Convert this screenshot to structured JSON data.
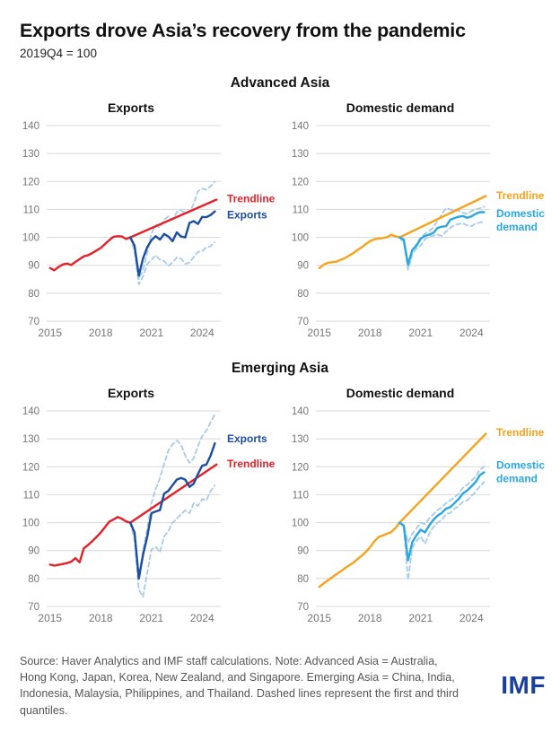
{
  "header": {
    "title": "Exports drove Asia’s recovery from the pandemic",
    "subtitle": "2019Q4 = 100"
  },
  "sections": [
    {
      "title": "Advanced Asia"
    },
    {
      "title": "Emerging Asia"
    }
  ],
  "footer": {
    "source_note": "Source: Haver Analytics and IMF staff calculations. Note: Advanced Asia = Australia, Hong Kong, Japan, Korea, New Zealand, and Singapore. Emerging Asia = China, India, Indonesia, Malaysia, Philippines, and Thailand. Dashed lines represent the first and third quantiles.",
    "logo": "IMF"
  },
  "colors": {
    "red": "#e22128",
    "dark_blue": "#1c4d9e",
    "med_blue": "#2aa7e0",
    "pale_blue": "#a5cbe9",
    "orange": "#f6a31c",
    "grid": "#d8d8d8",
    "tick": "#757575",
    "logo_blue": "#1a3f9c"
  },
  "chart_data": [
    {
      "type": "line",
      "section": "Advanced Asia",
      "title": "Exports",
      "ylim": [
        70,
        140
      ],
      "yticks": [
        70,
        80,
        90,
        100,
        110,
        120,
        130,
        140
      ],
      "xlim": [
        2014.8,
        2025.1
      ],
      "xticks": [
        2015,
        2018,
        2021,
        2024
      ],
      "grid": true,
      "legend_position": "right-of-line-ends",
      "series": [
        {
          "name": "third-quantile",
          "color_key": "pale_blue",
          "dash": true,
          "width": 1.8,
          "x0": 2019.75,
          "dx": 0.25,
          "values": [
            100,
            96.0,
            85.0,
            88.5,
            94.5,
            101.5,
            104.3,
            103.5,
            106.3,
            107.5,
            106.3,
            109.0,
            109.8,
            108.5,
            109.0,
            112.0,
            116.5,
            117.5,
            117.0,
            118.3,
            120.0
          ]
        },
        {
          "name": "first-quantile",
          "color_key": "pale_blue",
          "dash": true,
          "width": 1.8,
          "x0": 2019.75,
          "dx": 0.25,
          "values": [
            100,
            95.0,
            83.2,
            86.0,
            90.5,
            92.0,
            93.6,
            92.0,
            91.5,
            89.8,
            91.0,
            92.8,
            92.4,
            90.5,
            91.0,
            93.0,
            94.8,
            95.0,
            96.4,
            96.8,
            98.3
          ]
        },
        {
          "name": "actual-pre-pandemic",
          "color_key": "red",
          "dash": false,
          "width": 2.4,
          "x0": 2015.0,
          "dx": 0.25,
          "values": [
            89.0,
            88.2,
            89.4,
            90.3,
            90.6,
            90.1,
            91.2,
            92.2,
            93.2,
            93.6,
            94.4,
            95.3,
            96.2,
            97.6,
            99.0,
            100.2,
            100.4,
            100.3,
            99.4,
            100.0
          ]
        },
        {
          "name": "trendline",
          "color_key": "red",
          "dash": false,
          "width": 2.4,
          "points": [
            [
              2019.75,
              100
            ],
            [
              2024.85,
              113.5
            ]
          ],
          "label": {
            "lines": [
              "Trendline"
            ],
            "value": 113.8
          }
        },
        {
          "name": "exports",
          "color_key": "dark_blue",
          "dash": false,
          "width": 2.4,
          "x0": 2019.75,
          "dx": 0.25,
          "values": [
            100,
            97.0,
            86.3,
            92.5,
            96.5,
            99.0,
            100.4,
            99.2,
            101.2,
            100.3,
            98.6,
            101.8,
            100.3,
            100.0,
            105.2,
            105.8,
            104.8,
            107.3,
            107.2,
            108.0,
            109.3
          ],
          "label": {
            "lines": [
              "Exports"
            ],
            "value": 108.0
          }
        }
      ]
    },
    {
      "type": "line",
      "section": "Advanced Asia",
      "title": "Domestic demand",
      "ylim": [
        70,
        140
      ],
      "yticks": [
        70,
        80,
        90,
        100,
        110,
        120,
        130,
        140
      ],
      "xlim": [
        2014.8,
        2025.1
      ],
      "xticks": [
        2015,
        2018,
        2021,
        2024
      ],
      "grid": true,
      "legend_position": "right-of-line-ends",
      "series": [
        {
          "name": "third-quantile",
          "color_key": "pale_blue",
          "dash": true,
          "width": 1.8,
          "x0": 2019.75,
          "dx": 0.25,
          "values": [
            100,
            98.6,
            89.2,
            95.2,
            97.6,
            100.0,
            101.3,
            102.2,
            103.6,
            106.0,
            108.2,
            110.4,
            110.0,
            109.4,
            109.6,
            108.8,
            108.4,
            109.4,
            110.0,
            110.4,
            111.0
          ]
        },
        {
          "name": "first-quantile",
          "color_key": "pale_blue",
          "dash": true,
          "width": 1.8,
          "x0": 2019.75,
          "dx": 0.25,
          "values": [
            100,
            98.0,
            88.4,
            94.0,
            96.0,
            97.0,
            99.3,
            100.3,
            100.6,
            101.0,
            100.5,
            102.0,
            103.4,
            104.4,
            104.8,
            105.0,
            104.3,
            104.0,
            105.0,
            105.3,
            105.6
          ]
        },
        {
          "name": "actual-pre-pandemic",
          "color_key": "orange",
          "dash": false,
          "width": 2.4,
          "x0": 2015.0,
          "dx": 0.25,
          "values": [
            89.0,
            90.2,
            90.9,
            91.1,
            91.3,
            91.9,
            92.5,
            93.4,
            94.3,
            95.4,
            96.4,
            97.6,
            98.6,
            99.3,
            99.6,
            99.7,
            100.1,
            100.9,
            100.4,
            100.0
          ]
        },
        {
          "name": "trendline",
          "color_key": "orange",
          "dash": false,
          "width": 2.4,
          "points": [
            [
              2019.75,
              100
            ],
            [
              2024.85,
              114.8
            ]
          ],
          "label": {
            "lines": [
              "Trendline"
            ],
            "value": 115.0
          }
        },
        {
          "name": "domestic-demand",
          "color_key": "med_blue",
          "dash": false,
          "width": 2.4,
          "x0": 2019.75,
          "dx": 0.25,
          "values": [
            100,
            99.2,
            90.3,
            95.5,
            97.0,
            99.5,
            100.5,
            101.0,
            101.6,
            103.4,
            103.8,
            104.0,
            106.3,
            106.9,
            107.4,
            107.6,
            107.0,
            107.5,
            108.4,
            109.0,
            109.0
          ],
          "label": {
            "lines": [
              "Domestic",
              "demand"
            ],
            "value": 108.6
          }
        }
      ]
    },
    {
      "type": "line",
      "section": "Emerging Asia",
      "title": "Exports",
      "ylim": [
        70,
        140
      ],
      "yticks": [
        70,
        80,
        90,
        100,
        110,
        120,
        130,
        140
      ],
      "xlim": [
        2014.8,
        2025.1
      ],
      "xticks": [
        2015,
        2018,
        2021,
        2024
      ],
      "grid": true,
      "legend_position": "right-of-line-ends",
      "series": [
        {
          "name": "third-quantile",
          "color_key": "pale_blue",
          "dash": true,
          "width": 1.8,
          "x0": 2019.75,
          "dx": 0.25,
          "values": [
            100,
            95.0,
            80.5,
            90.0,
            98.0,
            107.0,
            112.0,
            116.0,
            121.0,
            125.8,
            128.0,
            129.4,
            128.0,
            124.0,
            121.4,
            123.0,
            127.4,
            131.0,
            133.0,
            136.0,
            138.8
          ]
        },
        {
          "name": "first-quantile",
          "color_key": "pale_blue",
          "dash": true,
          "width": 1.8,
          "x0": 2019.75,
          "dx": 0.25,
          "values": [
            100,
            94.0,
            76.0,
            73.4,
            82.0,
            90.4,
            91.4,
            89.4,
            95.0,
            97.0,
            100.0,
            101.4,
            103.0,
            104.4,
            103.4,
            107.0,
            106.0,
            108.4,
            108.0,
            111.4,
            113.4
          ]
        },
        {
          "name": "actual-pre-pandemic",
          "color_key": "red",
          "dash": false,
          "width": 2.4,
          "x0": 2015.0,
          "dx": 0.25,
          "values": [
            85.0,
            84.6,
            84.9,
            85.2,
            85.5,
            86.0,
            87.3,
            85.8,
            90.8,
            92.0,
            93.4,
            94.9,
            96.5,
            98.4,
            100.3,
            101.1,
            102.0,
            101.4,
            100.4,
            100.0
          ]
        },
        {
          "name": "trendline",
          "color_key": "red",
          "dash": false,
          "width": 2.4,
          "points": [
            [
              2019.75,
              100
            ],
            [
              2024.85,
              120.8
            ]
          ],
          "label": {
            "lines": [
              "Trendline"
            ],
            "value": 121.0
          }
        },
        {
          "name": "exports",
          "color_key": "dark_blue",
          "dash": false,
          "width": 2.4,
          "x0": 2019.75,
          "dx": 0.25,
          "values": [
            100,
            96.5,
            80.0,
            88.5,
            95.0,
            103.4,
            104.0,
            104.5,
            110.4,
            111.4,
            113.4,
            115.4,
            116.0,
            115.4,
            112.8,
            114.0,
            117.4,
            120.4,
            120.8,
            124.0,
            128.4
          ],
          "label": {
            "lines": [
              "Exports"
            ],
            "value": 130.0
          }
        }
      ]
    },
    {
      "type": "line",
      "section": "Emerging Asia",
      "title": "Domestic demand",
      "ylim": [
        70,
        140
      ],
      "yticks": [
        70,
        80,
        90,
        100,
        110,
        120,
        130,
        140
      ],
      "xlim": [
        2014.8,
        2025.1
      ],
      "xticks": [
        2015,
        2018,
        2021,
        2024
      ],
      "grid": true,
      "legend_position": "right-of-line-ends",
      "series": [
        {
          "name": "third-quantile",
          "color_key": "pale_blue",
          "dash": true,
          "width": 1.8,
          "x0": 2019.75,
          "dx": 0.25,
          "values": [
            100,
            99.0,
            93.0,
            96.0,
            98.0,
            100.0,
            99.5,
            101.5,
            103.0,
            104.5,
            105.5,
            107.0,
            108.0,
            109.0,
            110.5,
            112.5,
            113.5,
            115.0,
            116.5,
            119.0,
            120.0
          ]
        },
        {
          "name": "first-quantile",
          "color_key": "pale_blue",
          "dash": true,
          "width": 1.8,
          "x0": 2019.75,
          "dx": 0.25,
          "values": [
            100,
            98.5,
            79.5,
            91.0,
            93.5,
            95.0,
            92.5,
            96.0,
            98.5,
            100.0,
            101.0,
            103.0,
            103.5,
            105.0,
            106.0,
            107.5,
            108.0,
            109.5,
            111.0,
            113.0,
            114.5
          ]
        },
        {
          "name": "actual-pre-pandemic",
          "color_key": "orange",
          "dash": false,
          "width": 2.4,
          "x0": 2015.0,
          "dx": 0.25,
          "values": [
            77.0,
            78.2,
            79.3,
            80.4,
            81.5,
            82.5,
            83.6,
            84.6,
            85.6,
            86.9,
            88.1,
            89.5,
            91.2,
            93.2,
            94.8,
            95.4,
            96.0,
            96.6,
            98.0,
            100.0
          ]
        },
        {
          "name": "trendline",
          "color_key": "orange",
          "dash": false,
          "width": 2.4,
          "points": [
            [
              2019.75,
              100
            ],
            [
              2024.85,
              131.8
            ]
          ],
          "label": {
            "lines": [
              "Trendline"
            ],
            "value": 132.3
          }
        },
        {
          "name": "domestic-demand",
          "color_key": "med_blue",
          "dash": false,
          "width": 2.4,
          "x0": 2019.75,
          "dx": 0.25,
          "values": [
            100,
            99.0,
            86.5,
            93.0,
            95.5,
            97.5,
            96.5,
            99.0,
            101.0,
            102.5,
            103.5,
            105.0,
            105.5,
            107.0,
            108.5,
            110.5,
            111.5,
            113.0,
            114.5,
            117.0,
            118.0
          ],
          "label": {
            "lines": [
              "Domestic",
              "demand"
            ],
            "value": 120.5
          }
        }
      ]
    }
  ]
}
